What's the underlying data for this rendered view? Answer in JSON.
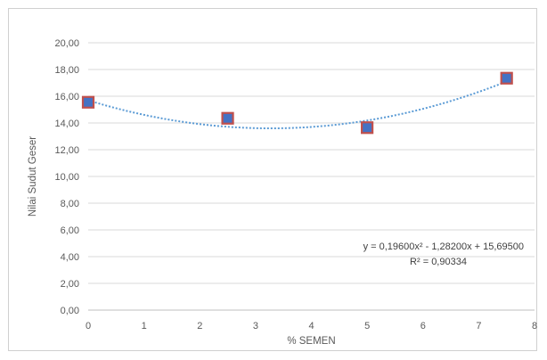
{
  "chart_data": {
    "type": "scatter",
    "title": "",
    "xlabel": "% SEMEN",
    "ylabel": "Nilai Sudut Geser",
    "xlim": [
      0,
      8
    ],
    "ylim": [
      0,
      20
    ],
    "x_ticks": [
      "0",
      "1",
      "2",
      "3",
      "4",
      "5",
      "6",
      "7",
      "8"
    ],
    "y_ticks": [
      "0,00",
      "2,00",
      "4,00",
      "6,00",
      "8,00",
      "10,00",
      "12,00",
      "14,00",
      "16,00",
      "18,00",
      "20,00"
    ],
    "grid": "horizontal",
    "series": [
      {
        "x": [
          0,
          2.5,
          5,
          7.5
        ],
        "y": [
          15.55,
          14.35,
          13.65,
          17.35
        ],
        "marker_fill": "#4472c4",
        "marker_edge": "#c0504d"
      }
    ],
    "trendline": {
      "kind": "polynomial-2",
      "coefficients": [
        0.196,
        -1.282,
        15.695
      ],
      "style": "dotted",
      "color": "#5b9bd5",
      "equation": "y = 0,19600x² - 1,28200x + 15,69500",
      "r_squared": "R² = 0,90334"
    }
  }
}
